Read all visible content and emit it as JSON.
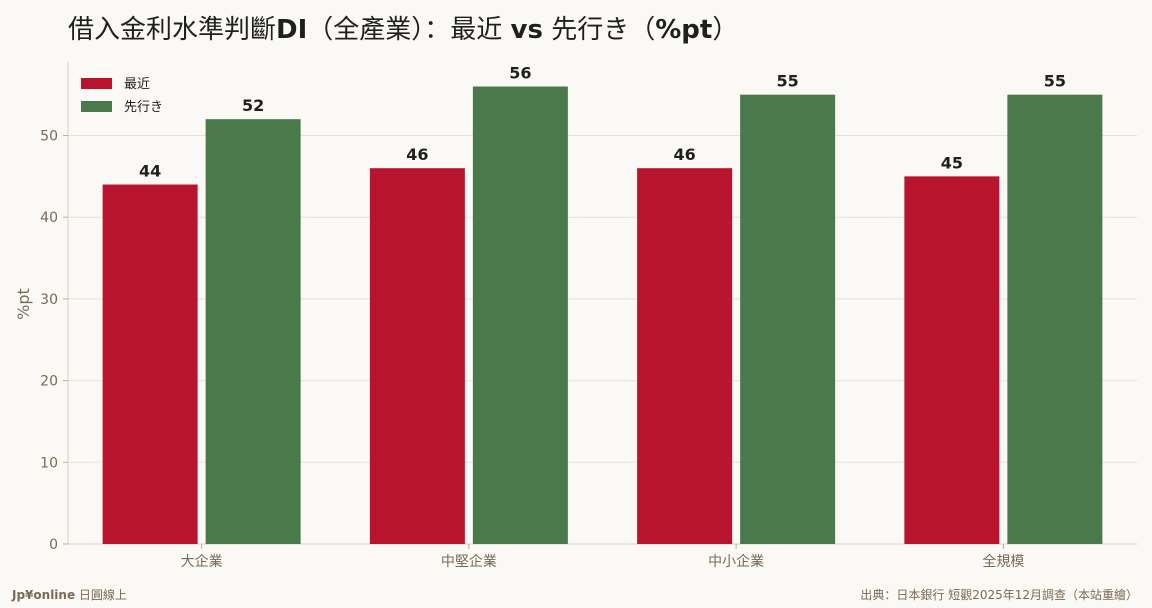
{
  "title": "借入金利水準判斷DI（全產業）：最近 vs 先行き（%pt）",
  "title_parts": [
    {
      "text": "借入金利水準判斷",
      "bold": false
    },
    {
      "text": "DI",
      "bold": true
    },
    {
      "text": "（全產業）：最近 ",
      "bold": false
    },
    {
      "text": "vs",
      "bold": true
    },
    {
      "text": " 先行き（",
      "bold": false
    },
    {
      "text": "%pt",
      "bold": true
    },
    {
      "text": "）",
      "bold": false
    }
  ],
  "footer": {
    "brand": "Jp¥online",
    "brand_suffix": " 日圓線上",
    "source": "出典：日本銀行 短觀2025年12月調查（本站重繪）"
  },
  "chart_data": {
    "type": "bar",
    "categories": [
      "大企業",
      "中堅企業",
      "中小企業",
      "全規模"
    ],
    "series": [
      {
        "name": "最近",
        "values": [
          44,
          46,
          46,
          45
        ],
        "color": "#b8142d"
      },
      {
        "name": "先行き",
        "values": [
          52,
          56,
          55,
          55
        ],
        "color": "#4a7a4b"
      }
    ],
    "ylabel": "%pt",
    "ylim": [
      0,
      59
    ],
    "yticks": [
      0,
      10,
      20,
      30,
      40,
      50
    ],
    "grid": true,
    "legend_position": "top-left"
  }
}
